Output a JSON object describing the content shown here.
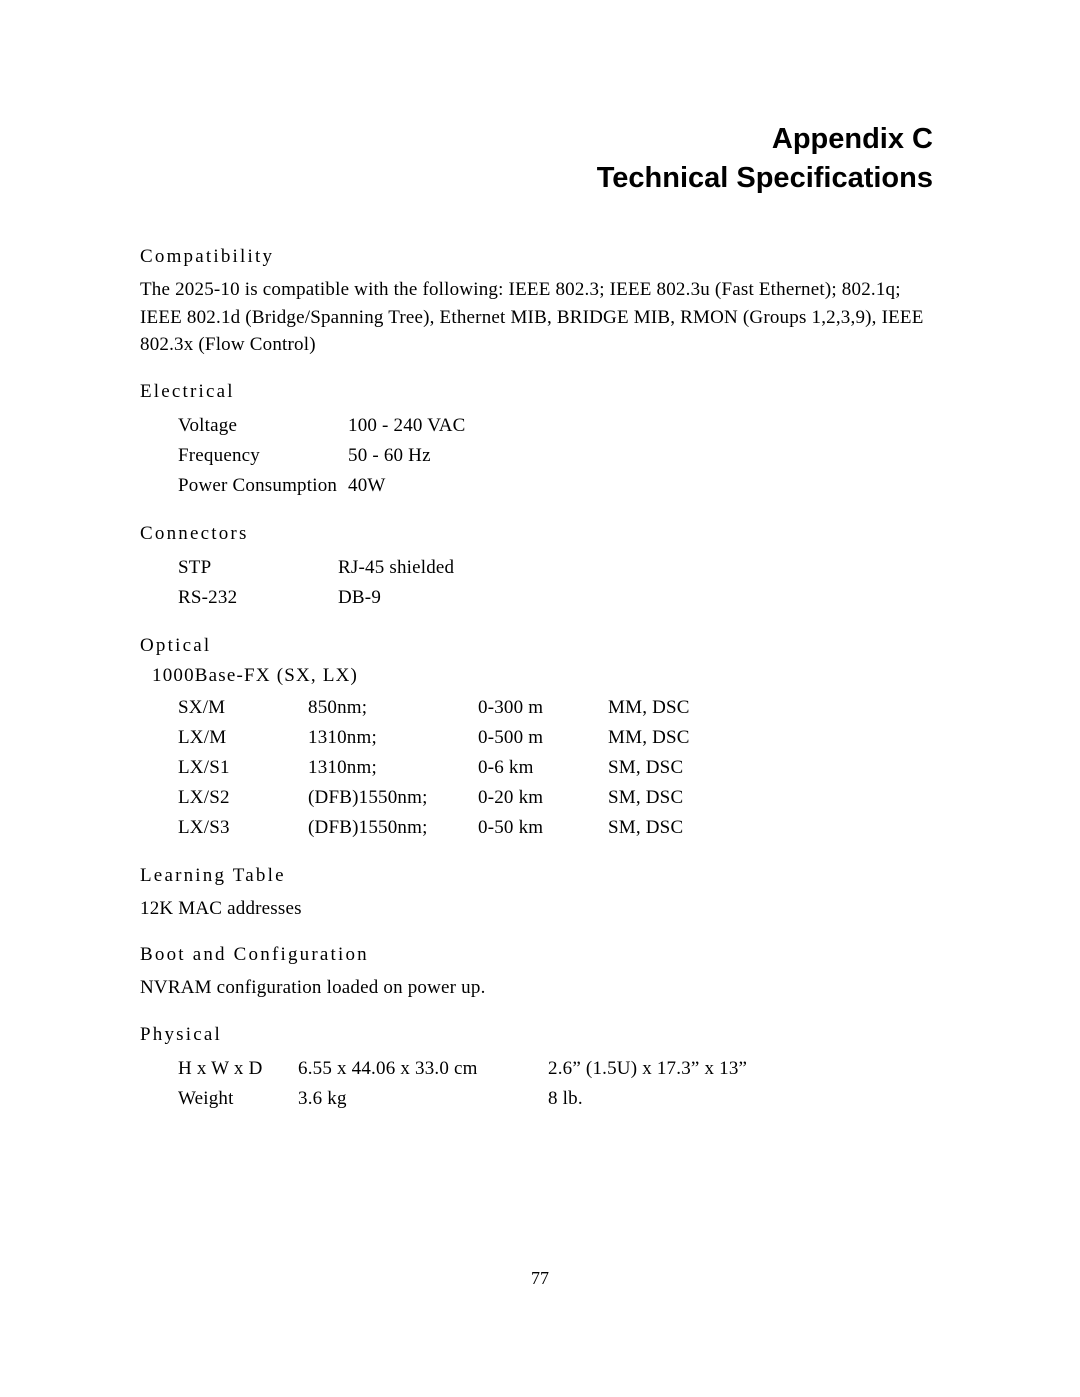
{
  "title": {
    "line1": "Appendix C",
    "line2": "Technical Specifications"
  },
  "sections": {
    "compatibility": {
      "heading": "Compatibility",
      "body": "The 2025-10 is compatible with the following:  IEEE 802.3; IEEE 802.3u (Fast Ethernet); 802.1q; IEEE 802.1d  (Bridge/Spanning Tree), Ethernet MIB, BRIDGE MIB, RMON (Groups 1,2,3,9), IEEE 802.3x (Flow Control)"
    },
    "electrical": {
      "heading": "Electrical",
      "rows": [
        {
          "label": "Voltage",
          "value": "100 - 240 VAC"
        },
        {
          "label": "Frequency",
          "value": "50 - 60 Hz"
        },
        {
          "label": "Power Consumption",
          "value": "40W"
        }
      ]
    },
    "connectors": {
      "heading": "Connectors",
      "rows": [
        {
          "label": "STP",
          "value": "RJ-45 shielded"
        },
        {
          "label": "RS-232",
          "value": "DB-9"
        }
      ]
    },
    "optical": {
      "heading": "Optical",
      "subheading": "1000Base-FX (SX, LX)",
      "rows": [
        {
          "c1": "SX/M",
          "c2": "850nm;",
          "c3": "0-300 m",
          "c4": "MM, DSC"
        },
        {
          "c1": "LX/M",
          "c2": "1310nm;",
          "c3": "0-500 m",
          "c4": "MM, DSC"
        },
        {
          "c1": "LX/S1",
          "c2": "1310nm;",
          "c3": "0-6 km",
          "c4": "SM, DSC"
        },
        {
          "c1": "LX/S2",
          "c2": "(DFB)1550nm;",
          "c3": "0-20 km",
          "c4": "SM, DSC"
        },
        {
          "c1": "LX/S3",
          "c2": "(DFB)1550nm;",
          "c3": "0-50 km",
          "c4": "SM, DSC"
        }
      ]
    },
    "learning_table": {
      "heading": "Learning Table",
      "body": "12K MAC addresses"
    },
    "boot_config": {
      "heading": "Boot and Configuration",
      "body": "NVRAM configuration loaded on power up."
    },
    "physical": {
      "heading": "Physical",
      "rows": [
        {
          "c1": "H x W x D",
          "c2": "6.55 x 44.06 x 33.0 cm",
          "c3": "2.6” (1.5U) x 17.3” x 13”"
        },
        {
          "c1": "Weight",
          "c2": "3.6 kg",
          "c3": "8 lb."
        }
      ]
    }
  },
  "page_number": "77"
}
